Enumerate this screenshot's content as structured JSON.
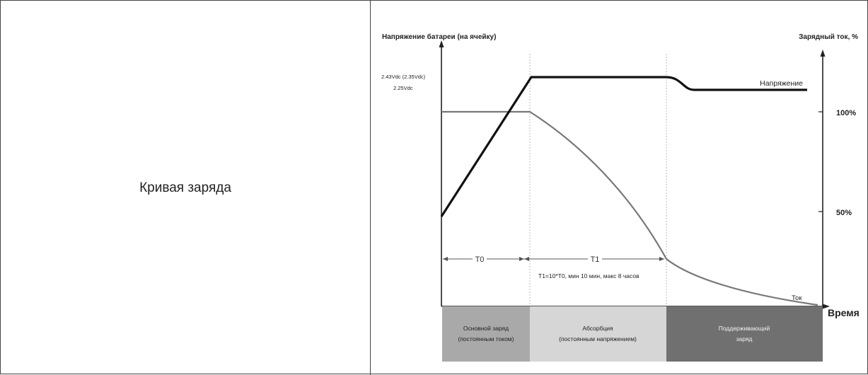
{
  "table": {
    "label": "Кривая заряда"
  },
  "chart": {
    "left_axis_title": "Напряжение батареи (на ячейку)",
    "right_axis_title": "Зарядный ток, %",
    "voltage_label_top": "2.43Vdc (2.35Vdc)",
    "voltage_label_bottom": "2.25Vdc",
    "right_tick_100": "100%",
    "right_tick_50": "50%",
    "voltage_curve_label": "Напряжение",
    "current_curve_label": "Ток",
    "x_axis_label": "Время",
    "t0_label": "T0",
    "t1_label": "T1",
    "t1_note": "T1=10*T0, мин 10 мин, макс 8 часов"
  },
  "stages": [
    {
      "line1": "Основной заряд",
      "line2": "(постоянным током)",
      "color": "#a9a9a9"
    },
    {
      "line1": "Абсорбция",
      "line2": "(постоянным напряжением)",
      "color": "#d6d6d6"
    },
    {
      "line1": "Поддерживающий",
      "line2": "заряд",
      "color": "#707070"
    }
  ],
  "colors": {
    "voltage_line": "#111111",
    "current_line": "#777777",
    "axis": "#222222",
    "divider": "#bbbbbb"
  }
}
